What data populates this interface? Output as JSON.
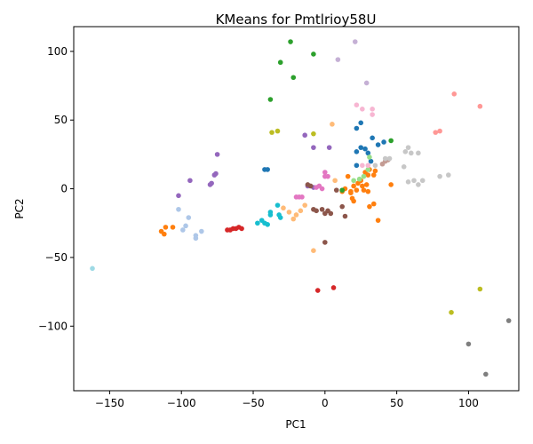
{
  "chart_data": {
    "type": "scatter",
    "title": "KMeans for Pmtlrioy58U",
    "xlabel": "PC1",
    "ylabel": "PC2",
    "xlim": [
      -175,
      135
    ],
    "ylim": [
      -147,
      118
    ],
    "xticks": [
      -150,
      -100,
      -50,
      0,
      50,
      100
    ],
    "yticks": [
      -100,
      -50,
      0,
      50,
      100
    ],
    "grid": false,
    "series": [
      {
        "color": "#1f77b4",
        "points": [
          [
            -42,
            14
          ],
          [
            -40,
            14
          ],
          [
            22,
            27
          ],
          [
            25,
            30
          ],
          [
            28,
            29
          ],
          [
            30,
            26
          ],
          [
            33,
            37
          ],
          [
            37,
            32
          ],
          [
            41,
            34
          ],
          [
            22,
            44
          ],
          [
            25,
            48
          ],
          [
            32,
            20
          ],
          [
            22,
            17
          ]
        ]
      },
      {
        "color": "#ff7f0e",
        "points": [
          [
            -114,
            -31
          ],
          [
            -112,
            -33
          ],
          [
            -111,
            -28
          ],
          [
            -106,
            -28
          ],
          [
            12,
            -2
          ],
          [
            14,
            0
          ],
          [
            16,
            9
          ],
          [
            18,
            -3
          ],
          [
            20,
            2
          ],
          [
            22,
            -1
          ],
          [
            20,
            -9
          ],
          [
            23,
            4
          ],
          [
            25,
            6
          ],
          [
            27,
            -1
          ],
          [
            28,
            12
          ],
          [
            30,
            -2
          ],
          [
            30,
            10
          ],
          [
            31,
            14
          ],
          [
            34,
            10
          ],
          [
            35,
            13
          ],
          [
            37,
            -23
          ],
          [
            31,
            -13
          ],
          [
            34,
            -11
          ],
          [
            19,
            -7
          ],
          [
            46,
            3
          ],
          [
            26,
            2
          ],
          [
            29,
            3
          ],
          [
            18,
            -2
          ]
        ]
      },
      {
        "color": "#2ca02c",
        "points": [
          [
            -24,
            107
          ],
          [
            -8,
            98
          ],
          [
            -31,
            92
          ],
          [
            -22,
            81
          ],
          [
            -38,
            65
          ],
          [
            46,
            35
          ],
          [
            12,
            -1
          ]
        ]
      },
      {
        "color": "#d62728",
        "points": [
          [
            -68,
            -30
          ],
          [
            -66,
            -30
          ],
          [
            -64,
            -29
          ],
          [
            -62,
            -29
          ],
          [
            -60,
            -28
          ],
          [
            -58,
            -29
          ],
          [
            -5,
            -74
          ],
          [
            6,
            -72
          ]
        ]
      },
      {
        "color": "#9467bd",
        "points": [
          [
            -75,
            25
          ],
          [
            -77,
            10
          ],
          [
            -76,
            11
          ],
          [
            -80,
            3
          ],
          [
            -79,
            4
          ],
          [
            -94,
            6
          ],
          [
            -102,
            -5
          ],
          [
            -14,
            39
          ],
          [
            -8,
            30
          ],
          [
            3,
            30
          ],
          [
            -8,
            1
          ],
          [
            -12,
            2
          ]
        ]
      },
      {
        "color": "#8c564b",
        "points": [
          [
            -12,
            3
          ],
          [
            -10,
            2
          ],
          [
            -8,
            -15
          ],
          [
            -6,
            -16
          ],
          [
            -2,
            -15
          ],
          [
            0,
            -18
          ],
          [
            2,
            -16
          ],
          [
            4,
            -18
          ],
          [
            8,
            -1
          ],
          [
            12,
            -13
          ],
          [
            14,
            -20
          ],
          [
            0,
            -39
          ]
        ]
      },
      {
        "color": "#e377c2",
        "points": [
          [
            -20,
            -6
          ],
          [
            -18,
            -6
          ],
          [
            -16,
            -6
          ],
          [
            -6,
            1
          ],
          [
            -4,
            2
          ],
          [
            -2,
            0
          ],
          [
            0,
            12
          ],
          [
            0,
            9
          ],
          [
            2,
            9
          ]
        ]
      },
      {
        "color": "#7f7f7f",
        "points": [
          [
            100,
            -113
          ],
          [
            112,
            -135
          ],
          [
            128,
            -96
          ]
        ]
      },
      {
        "color": "#bcbd22",
        "points": [
          [
            -33,
            42
          ],
          [
            -37,
            41
          ],
          [
            -8,
            40
          ],
          [
            88,
            -90
          ],
          [
            108,
            -73
          ]
        ]
      },
      {
        "color": "#17becf",
        "points": [
          [
            -47,
            -25
          ],
          [
            -44,
            -23
          ],
          [
            -42,
            -25
          ],
          [
            -40,
            -26
          ],
          [
            -38,
            -19
          ],
          [
            -38,
            -17
          ],
          [
            -33,
            -12
          ],
          [
            -32,
            -19
          ],
          [
            -31,
            -21
          ]
        ]
      },
      {
        "color": "#aec7e8",
        "points": [
          [
            -102,
            -15
          ],
          [
            -99,
            -30
          ],
          [
            -97,
            -27
          ],
          [
            -95,
            -21
          ],
          [
            -90,
            -34
          ],
          [
            -90,
            -36
          ],
          [
            -86,
            -31
          ]
        ]
      },
      {
        "color": "#ffbb78",
        "points": [
          [
            -29,
            -14
          ],
          [
            -25,
            -17
          ],
          [
            -20,
            -19
          ],
          [
            -22,
            -22
          ],
          [
            -17,
            -16
          ],
          [
            -14,
            -12
          ],
          [
            -8,
            -45
          ],
          [
            5,
            47
          ],
          [
            7,
            6
          ]
        ]
      },
      {
        "color": "#98df8a",
        "points": [
          [
            20,
            6
          ],
          [
            24,
            7
          ],
          [
            27,
            9
          ],
          [
            30,
            14
          ],
          [
            31,
            23
          ]
        ]
      },
      {
        "color": "#ff9896",
        "points": [
          [
            77,
            41
          ],
          [
            80,
            42
          ],
          [
            90,
            69
          ],
          [
            108,
            60
          ]
        ]
      },
      {
        "color": "#c5b0d5",
        "points": [
          [
            21,
            107
          ],
          [
            9,
            94
          ],
          [
            29,
            77
          ]
        ]
      },
      {
        "color": "#c49c94",
        "points": [
          [
            40,
            18
          ],
          [
            42,
            20
          ],
          [
            44,
            21
          ]
        ]
      },
      {
        "color": "#f7b6d2",
        "points": [
          [
            22,
            61
          ],
          [
            26,
            58
          ],
          [
            33,
            58
          ],
          [
            33,
            54
          ],
          [
            26,
            17
          ],
          [
            30,
            17
          ]
        ]
      },
      {
        "color": "#c7c7c7",
        "points": [
          [
            35,
            17
          ],
          [
            42,
            22
          ],
          [
            45,
            22
          ],
          [
            55,
            16
          ],
          [
            56,
            27
          ],
          [
            58,
            30
          ],
          [
            60,
            26
          ],
          [
            65,
            26
          ],
          [
            58,
            5
          ],
          [
            62,
            6
          ],
          [
            65,
            3
          ],
          [
            68,
            6
          ],
          [
            80,
            9
          ],
          [
            86,
            10
          ]
        ]
      },
      {
        "color": "#9edae5",
        "points": [
          [
            -162,
            -58
          ]
        ]
      }
    ]
  }
}
